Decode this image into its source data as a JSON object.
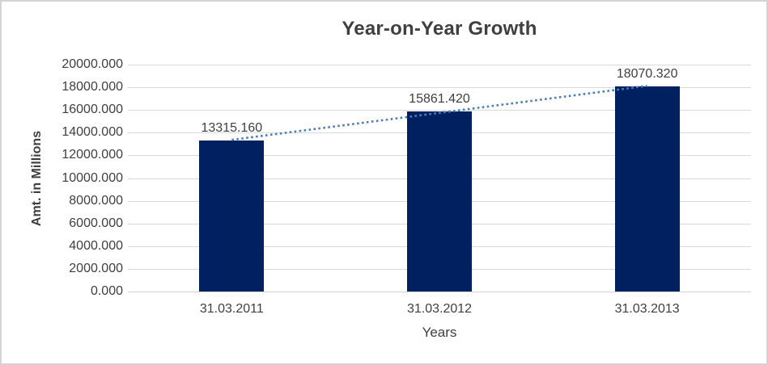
{
  "frame": {
    "background_color": "#ffffff",
    "border_color": "#d3d3d3"
  },
  "chart_data": {
    "type": "bar",
    "title": "Year-on-Year Growth",
    "xlabel": "Years",
    "ylabel": "Amt. in Millions",
    "categories": [
      "31.03.2011",
      "31.03.2012",
      "31.03.2013"
    ],
    "values": [
      13315.16,
      15861.42,
      18070.32
    ],
    "data_labels": [
      "13315.160",
      "15861.420",
      "18070.320"
    ],
    "ylim": [
      0,
      20000
    ],
    "ytick_step": 2000,
    "ytick_labels": [
      "0.000",
      "2000.000",
      "4000.000",
      "6000.000",
      "8000.000",
      "10000.000",
      "12000.000",
      "14000.000",
      "16000.000",
      "18000.000",
      "20000.000"
    ],
    "grid": "horizontal",
    "legend": "none",
    "bar_color": "#002060",
    "gridline_color": "#d9d9d9",
    "axis_line_color": "#d2d2d2",
    "text_color": "#404040",
    "trendline": {
      "type": "linear",
      "series": "values",
      "style": "dotted",
      "color": "#4a7ebb"
    }
  }
}
